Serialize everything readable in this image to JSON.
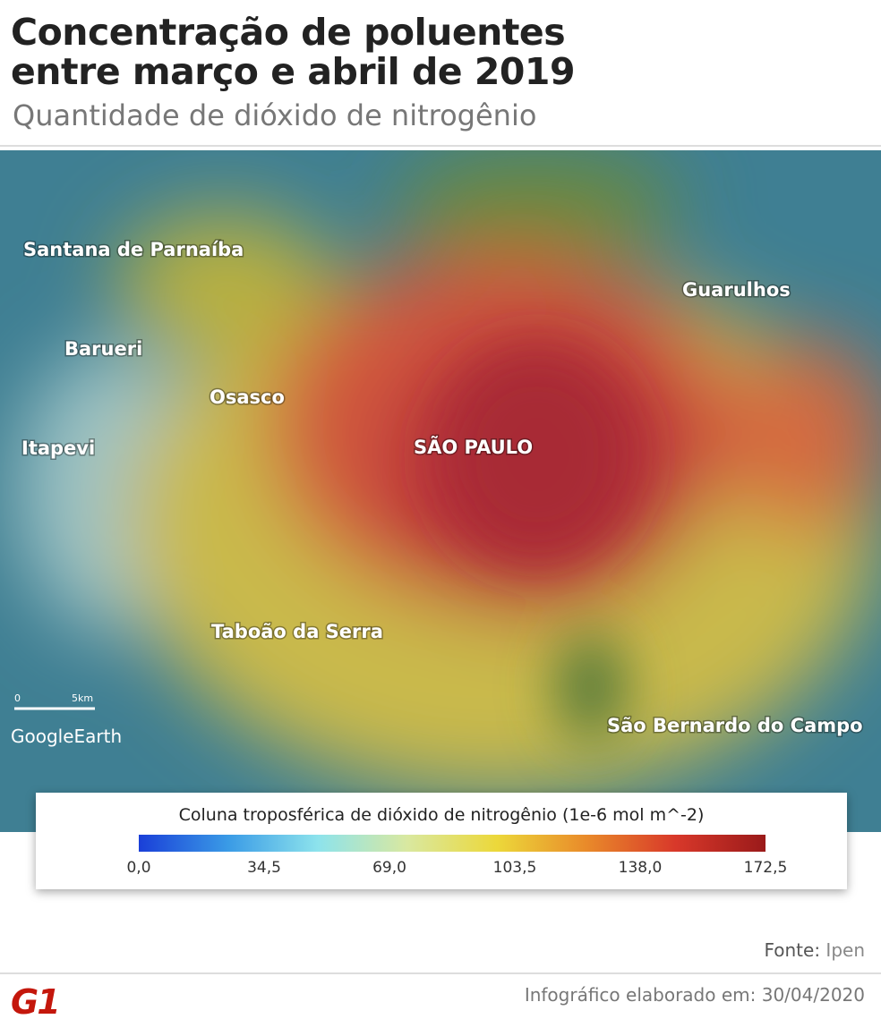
{
  "header": {
    "title": [
      "Concentração de poluentes",
      "entre março e abril de 2019"
    ],
    "subtitle": "Quantidade de dióxido de nitrogênio"
  },
  "map": {
    "labels": [
      "Santana de Parnaíba",
      "Guarulhos",
      "Barueri",
      "Osasco",
      "Itapevi",
      "SÃO PAULO",
      "Taboão da Serra",
      "São Bernardo do Campo"
    ],
    "scale": {
      "start": "0",
      "end": "5km"
    },
    "attribution": "GoogleEarth"
  },
  "legend": {
    "title": "Coluna troposférica de dióxido de nitrogênio (1e-6 mol m^-2)",
    "ticks": [
      "0,0",
      "34,5",
      "69,0",
      "103,5",
      "138,0",
      "172,5"
    ]
  },
  "footer": {
    "source_label": "Fonte:",
    "source": "Ipen",
    "credit": "Infográfico elaborado em: 30/04/2020",
    "logo": "G1"
  }
}
